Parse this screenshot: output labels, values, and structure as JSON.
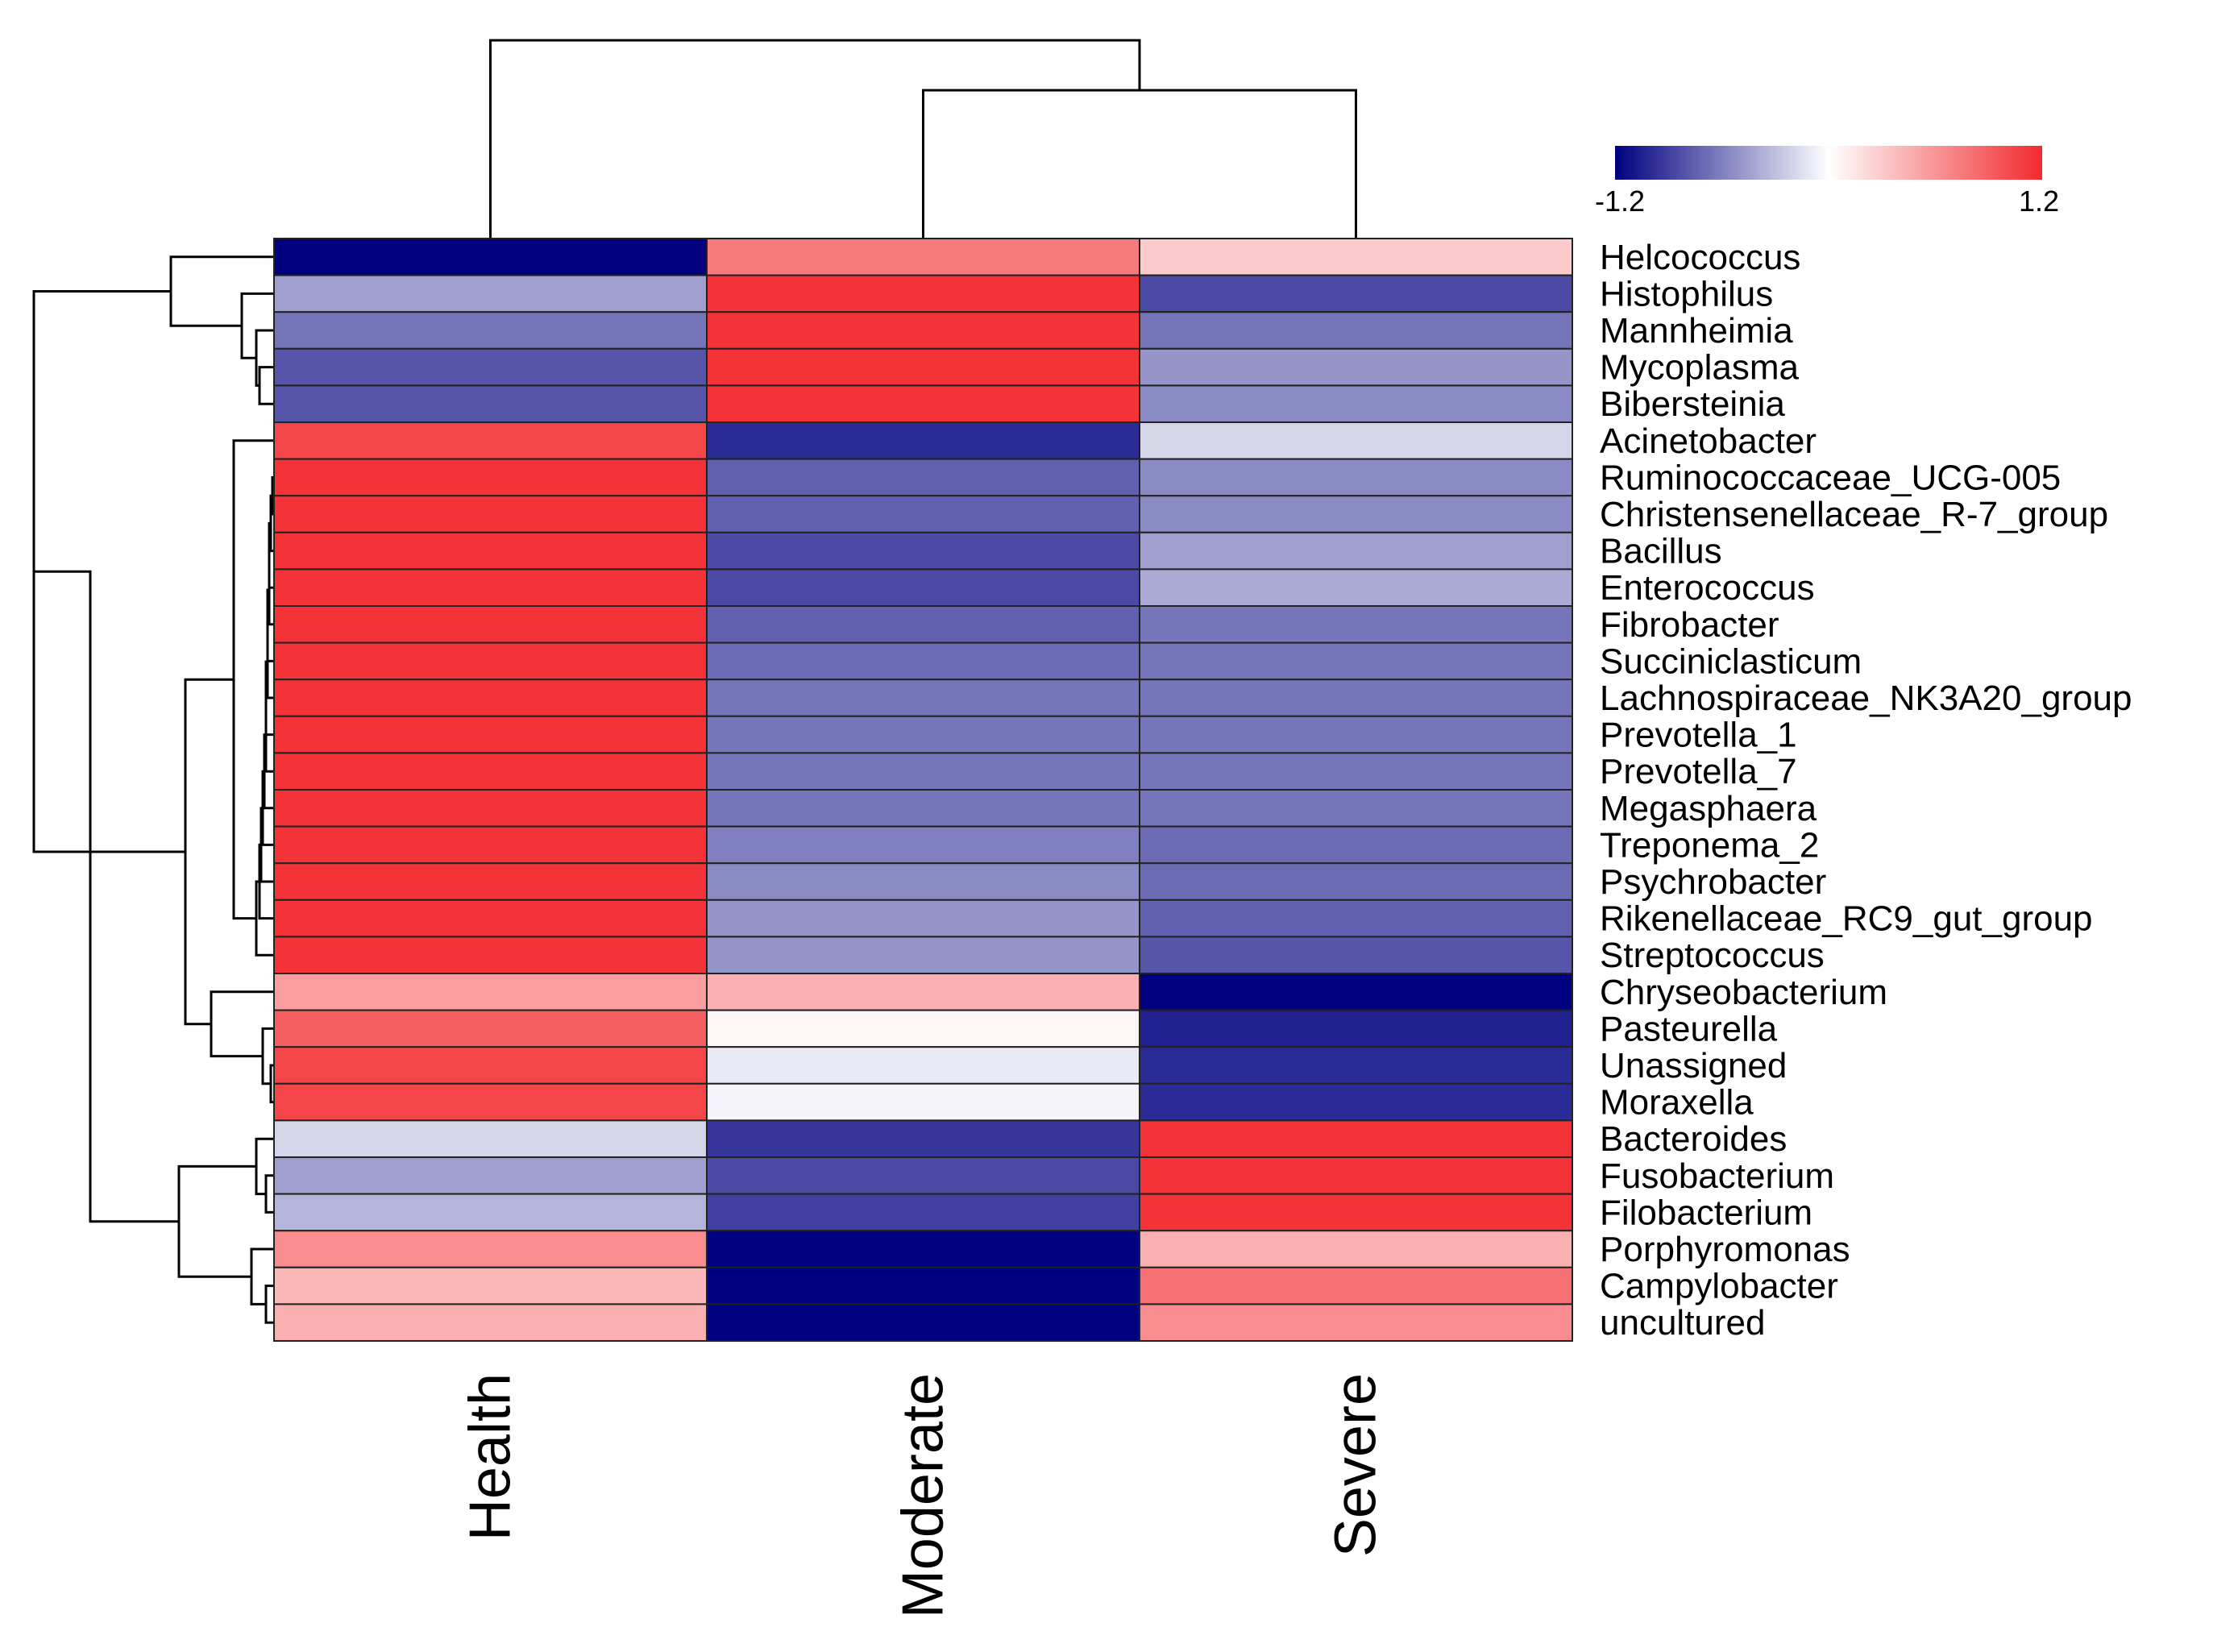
{
  "chart_data": {
    "type": "heatmap",
    "title": "",
    "columns": [
      "Health",
      "Moderate",
      "Severe"
    ],
    "rows": [
      "Helcococcus",
      "Histophilus",
      "Mannheimia",
      "Mycoplasma",
      "Bibersteinia",
      "Acinetobacter",
      "Ruminococcaceae_UCG-005",
      "Christensenellaceae_R-7_group",
      "Bacillus",
      "Enterococcus",
      "Fibrobacter",
      "Succiniclasticum",
      "Lachnospiraceae_NK3A20_group",
      "Prevotella_1",
      "Prevotella_7",
      "Megasphaera",
      "Treponema_2",
      "Psychrobacter",
      "Rikenellaceae_RC9_gut_group",
      "Streptococcus",
      "Chryseobacterium",
      "Pasteurella",
      "Unassigned",
      "Moraxella",
      "Bacteroides",
      "Fusobacterium",
      "Filobacterium",
      "Porphyromonas",
      "Campylobacter",
      "uncultured"
    ],
    "values": [
      [
        -1.2,
        0.75,
        0.3
      ],
      [
        -0.45,
        1.15,
        -0.85
      ],
      [
        -0.65,
        1.15,
        -0.65
      ],
      [
        -0.8,
        1.15,
        -0.5
      ],
      [
        -0.8,
        1.15,
        -0.55
      ],
      [
        1.05,
        -1.0,
        -0.2
      ],
      [
        1.15,
        -0.75,
        -0.55
      ],
      [
        1.15,
        -0.75,
        -0.55
      ],
      [
        1.15,
        -0.85,
        -0.45
      ],
      [
        1.15,
        -0.85,
        -0.4
      ],
      [
        1.15,
        -0.75,
        -0.65
      ],
      [
        1.15,
        -0.7,
        -0.65
      ],
      [
        1.15,
        -0.65,
        -0.65
      ],
      [
        1.15,
        -0.65,
        -0.65
      ],
      [
        1.15,
        -0.65,
        -0.65
      ],
      [
        1.15,
        -0.65,
        -0.65
      ],
      [
        1.15,
        -0.6,
        -0.7
      ],
      [
        1.15,
        -0.55,
        -0.7
      ],
      [
        1.15,
        -0.5,
        -0.75
      ],
      [
        1.15,
        -0.5,
        -0.8
      ],
      [
        0.55,
        0.45,
        -1.2
      ],
      [
        0.9,
        0.05,
        -1.05
      ],
      [
        1.05,
        -0.1,
        -1.0
      ],
      [
        1.05,
        -0.05,
        -1.0
      ],
      [
        -0.2,
        -0.95,
        1.15
      ],
      [
        -0.45,
        -0.85,
        1.15
      ],
      [
        -0.35,
        -0.9,
        1.15
      ],
      [
        0.65,
        -1.2,
        0.45
      ],
      [
        0.4,
        -1.2,
        0.8
      ],
      [
        0.45,
        -1.2,
        0.65
      ]
    ],
    "color_scale": {
      "min": -1.2,
      "max": 1.2,
      "low": "#000080",
      "mid": "#ffffff",
      "high": "#f22a2e"
    },
    "legend": {
      "min_label": "-1.2",
      "max_label": "1.2",
      "position": "top-right"
    },
    "dendrograms": {
      "rows": true,
      "columns": true
    },
    "xlabel": "",
    "ylabel": ""
  }
}
